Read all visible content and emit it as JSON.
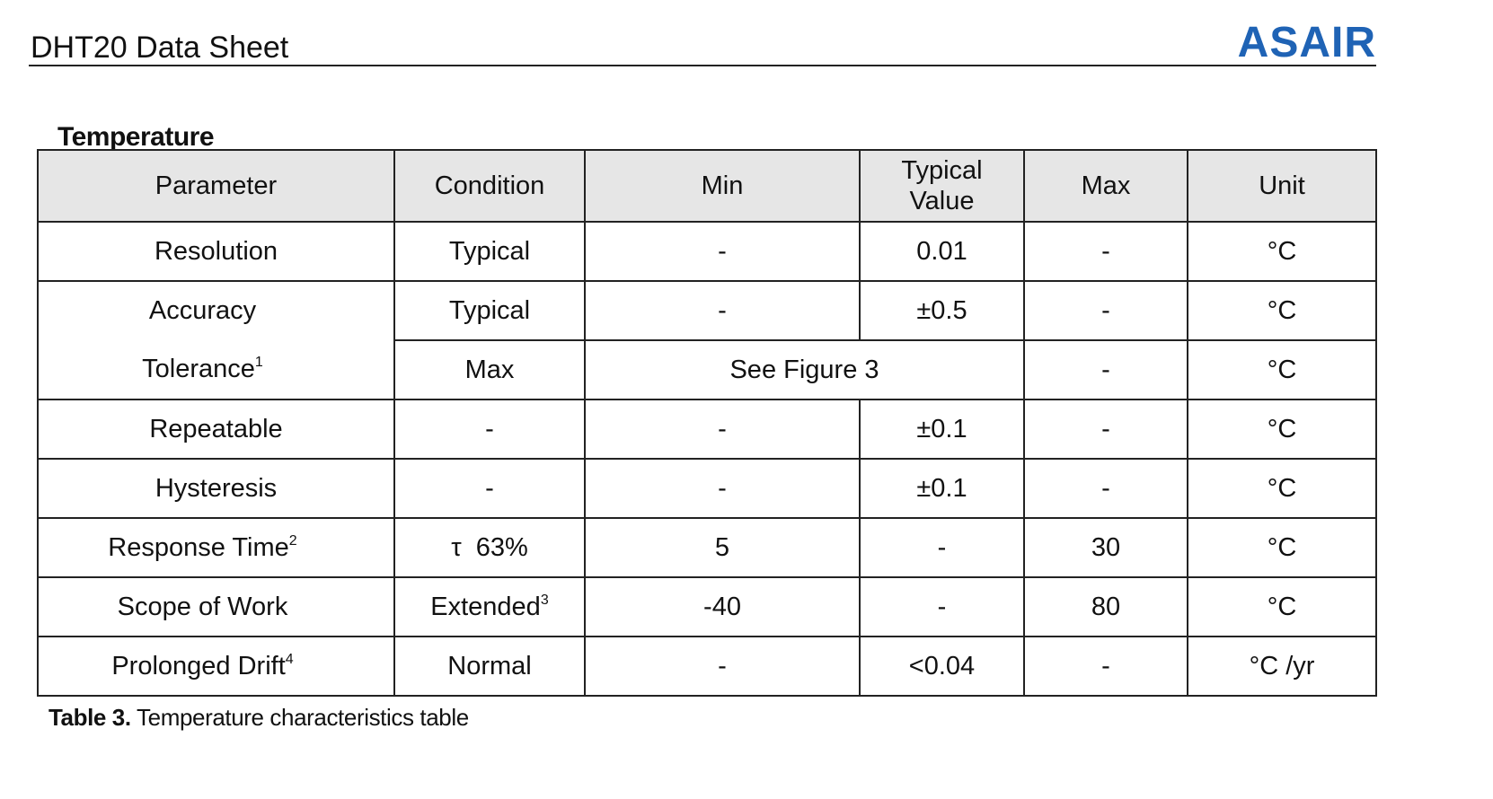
{
  "header": {
    "doc_title": "DHT20 Data Sheet",
    "brand": "ASAIR"
  },
  "section_title": "Temperature",
  "table": {
    "headers": [
      "Parameter",
      "Condition",
      "Min",
      "Typical Value",
      "Max",
      "Unit"
    ],
    "rows": {
      "resolution": {
        "parameter": "Resolution",
        "condition": "Typical",
        "min": "-",
        "typical": "0.01",
        "max": "-",
        "unit": "°C"
      },
      "accuracy": {
        "parameter": "Accuracy",
        "condition": "Typical",
        "min": "-",
        "typical": "±0.5",
        "max": "-",
        "unit": "°C"
      },
      "tolerance": {
        "parameter": "Tolerance",
        "sup": "1",
        "condition": "Max",
        "span_value": "See Figure 3",
        "max": "-",
        "unit": "°C"
      },
      "repeatable": {
        "parameter": "Repeatable",
        "condition": "-",
        "min": "-",
        "typical": "±0.1",
        "max": "-",
        "unit": "°C"
      },
      "hysteresis": {
        "parameter": "Hysteresis",
        "condition": "-",
        "min": "-",
        "typical": "±0.1",
        "max": "-",
        "unit": "°C"
      },
      "response_time": {
        "parameter": "Response Time",
        "sup": "2",
        "condition": "τ  63%",
        "min": "5",
        "typical": "-",
        "max": "30",
        "unit": "°C"
      },
      "scope_of_work": {
        "parameter": "Scope of Work",
        "condition": "Extended",
        "condition_sup": "3",
        "min": "-40",
        "typical": "-",
        "max": "80",
        "unit": "°C"
      },
      "prolonged_drift": {
        "parameter": "Prolonged Drift",
        "sup": "4",
        "condition": "Normal",
        "min": "-",
        "typical": "<0.04",
        "max": "-",
        "unit": "°C /yr"
      }
    }
  },
  "caption": {
    "label": "Table 3.",
    "text": " Temperature characteristics table"
  },
  "colors": {
    "brand": "#1f63b5",
    "header_bg": "#e6e6e6",
    "border": "#222222"
  }
}
